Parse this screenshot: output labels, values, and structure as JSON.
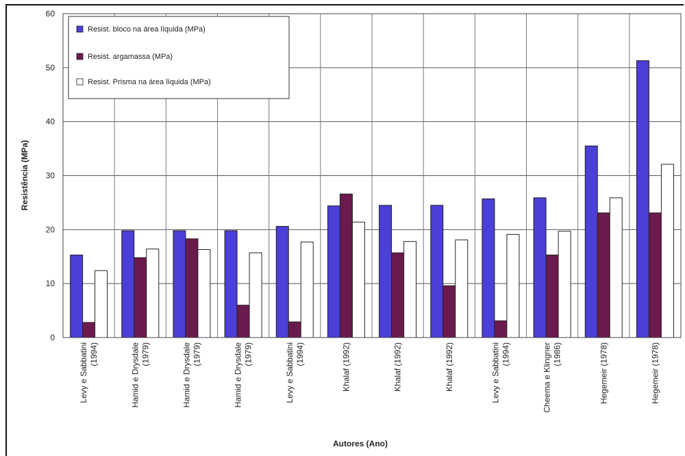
{
  "chart_data": {
    "type": "bar",
    "title": "",
    "xlabel": "Autores (Ano)",
    "ylabel": "Resistência (MPa)",
    "ylim": [
      0,
      60
    ],
    "yticks": [
      0,
      10,
      20,
      30,
      40,
      50,
      60
    ],
    "grid": true,
    "legend_position": "top-left",
    "categories": [
      [
        "Levy e Sabbatini",
        "(1994)"
      ],
      [
        "Hamid e Drysdale",
        "(1979)"
      ],
      [
        "Hamid e Drysdale",
        "(1979)"
      ],
      [
        "Hamid e Drysdale",
        "(1979)"
      ],
      [
        "Levy e Sabbatini",
        "(1994)"
      ],
      [
        "Khalaf (1992)"
      ],
      [
        "Khalaf (1992)"
      ],
      [
        "Khalaf (1992)"
      ],
      [
        "Levy e Sabbatini",
        "(1994)"
      ],
      [
        "Cheema e Klingner",
        "(1986)"
      ],
      [
        "Hegemeir (1978)"
      ],
      [
        "Hegemeir (1978)"
      ]
    ],
    "series": [
      {
        "name": "Resist. bloco na área líquida (MPa)",
        "color": "#4a3fd6",
        "values": [
          15.3,
          19.8,
          19.8,
          19.8,
          20.6,
          24.4,
          24.5,
          24.5,
          25.7,
          25.9,
          35.5,
          51.3
        ]
      },
      {
        "name": "Resist. argamassa (MPa)",
        "color": "#6b1a4e",
        "values": [
          2.8,
          14.8,
          18.3,
          6.0,
          2.9,
          26.6,
          15.7,
          9.6,
          3.1,
          15.3,
          23.1,
          23.1
        ]
      },
      {
        "name": "Resist. Prisma na área líquida (MPa)",
        "color": "#ffffff",
        "values": [
          12.4,
          16.4,
          16.3,
          15.7,
          17.7,
          21.4,
          17.8,
          18.1,
          19.1,
          19.7,
          25.9,
          32.1
        ]
      }
    ]
  }
}
